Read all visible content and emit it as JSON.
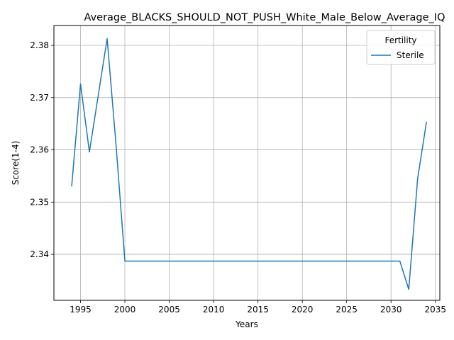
{
  "chart_data": {
    "type": "line",
    "title": "Average_BLACKS_SHOULD_NOT_PUSH_White_Male_Below_Average_IQ",
    "xlabel": "Years",
    "ylabel": "Score(1-4)",
    "xlim": [
      1992.0,
      2035.5
    ],
    "ylim": [
      2.3312,
      2.3838
    ],
    "x_ticks": [
      1995,
      2000,
      2005,
      2010,
      2015,
      2020,
      2025,
      2030,
      2035
    ],
    "y_ticks": [
      2.34,
      2.35,
      2.36,
      2.37,
      2.38
    ],
    "y_tick_labels": [
      "2.34",
      "2.35",
      "2.36",
      "2.37",
      "2.38"
    ],
    "grid": true,
    "legend": {
      "title": "Fertility",
      "placement": "top-right"
    },
    "series": [
      {
        "name": "Sterile",
        "color": "#1f77b4",
        "x": [
          1994,
          1995,
          1996,
          1998,
          1999,
          2000,
          2001,
          2002,
          2003,
          2004,
          2005,
          2006,
          2007,
          2008,
          2009,
          2010,
          2011,
          2012,
          2013,
          2014,
          2015,
          2016,
          2017,
          2018,
          2019,
          2020,
          2021,
          2022,
          2023,
          2024,
          2025,
          2026,
          2027,
          2028,
          2029,
          2030,
          2031,
          2032,
          2033,
          2034
        ],
        "y": [
          2.353,
          2.3726,
          2.3596,
          2.3813,
          2.361,
          2.3387,
          2.3387,
          2.3387,
          2.3387,
          2.3387,
          2.3387,
          2.3387,
          2.3387,
          2.3387,
          2.3387,
          2.3387,
          2.3387,
          2.3387,
          2.3387,
          2.3387,
          2.3387,
          2.3387,
          2.3387,
          2.3387,
          2.3387,
          2.3387,
          2.3387,
          2.3387,
          2.3387,
          2.3387,
          2.3387,
          2.3387,
          2.3387,
          2.3387,
          2.3387,
          2.3387,
          2.3387,
          2.3333,
          2.3545,
          2.3654
        ]
      }
    ]
  }
}
